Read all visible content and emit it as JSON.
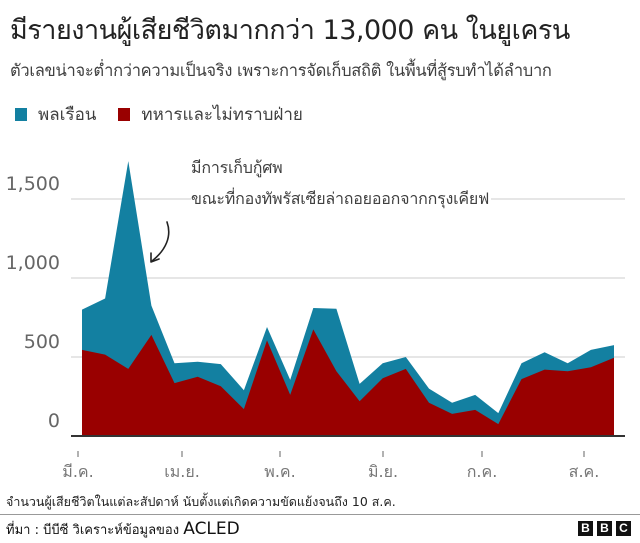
{
  "header": {
    "title": "มีรายงานผู้เสียชีวิตมากกว่า 13,000 คน ในยูเครน",
    "subtitle": "ตัวเลขน่าจะต่ำกว่าความเป็นจริง เพราะการจัดเก็บสถิติ ในพื้นที่สู้รบทำได้ลำบาก"
  },
  "legend": [
    {
      "label": "พลเรือน",
      "color": "#1380A1"
    },
    {
      "label": "ทหารและไม่ทราบฝ่าย",
      "color": "#990000"
    }
  ],
  "annotation": {
    "line1": "มีการเก็บกู้ศพ",
    "line2": "ขณะที่กองทัพรัสเซียล่าถอยออกจากกรุงเคียฟ"
  },
  "axis": {
    "y_ticks": [
      "1,500",
      "1,000",
      "500",
      "0"
    ],
    "x_ticks": [
      "มี.ค.",
      "เม.ย.",
      "พ.ค.",
      "มิ.ย.",
      "ก.ค.",
      "ส.ค."
    ]
  },
  "note": "จำนวนผู้เสียชีวิตในแต่ละสัปดาห์ นับตั้งแต่เกิดความขัดแย้งจนถึง 10 ส.ค.",
  "source": {
    "prefix": "ที่มา : บีบีซี วิเคราะห์ข้อมูลของ ",
    "org": "ACLED"
  },
  "brand": [
    "B",
    "B",
    "C"
  ],
  "chart_data": {
    "type": "area",
    "stacked": true,
    "title": "มีรายงานผู้เสียชีวิตมากกว่า 13,000 คน ในยูเครน",
    "subtitle": "ตัวเลขน่าจะต่ำกว่าความเป็นจริง เพราะการจัดเก็บสถิติ ในพื้นที่สู้รบทำได้ลำบาก",
    "xlabel": "",
    "ylabel": "",
    "ylim": [
      0,
      1750
    ],
    "yticks": [
      0,
      500,
      1000,
      1500
    ],
    "xtick_labels": [
      "มี.ค.",
      "เม.ย.",
      "พ.ค.",
      "มิ.ย.",
      "ก.ค.",
      "ส.ค."
    ],
    "grid": true,
    "legend_position": "top-left",
    "x": [
      "w1",
      "w2",
      "w3",
      "w4",
      "w5",
      "w6",
      "w7",
      "w8",
      "w9",
      "w10",
      "w11",
      "w12",
      "w13",
      "w14",
      "w15",
      "w16",
      "w17",
      "w18",
      "w19",
      "w20",
      "w21",
      "w22",
      "w23",
      "w24"
    ],
    "series": [
      {
        "name": "ทหารและไม่ทราบฝ่าย",
        "color": "#990000",
        "values": [
          545,
          515,
          425,
          640,
          335,
          375,
          315,
          170,
          605,
          260,
          675,
          410,
          220,
          365,
          425,
          210,
          140,
          165,
          75,
          360,
          420,
          410,
          435,
          495
        ]
      },
      {
        "name": "พลเรือน",
        "color": "#1380A1",
        "values": [
          255,
          355,
          1315,
          185,
          125,
          95,
          140,
          120,
          85,
          95,
          135,
          395,
          110,
          95,
          75,
          90,
          70,
          95,
          70,
          100,
          110,
          50,
          110,
          80
        ]
      }
    ],
    "totals": [
      800,
      870,
      1740,
      825,
      460,
      470,
      455,
      290,
      690,
      355,
      810,
      805,
      330,
      460,
      500,
      300,
      210,
      260,
      145,
      460,
      530,
      460,
      545,
      575
    ],
    "annotation": "มีการเก็บกู้ศพ ขณะที่กองทัพรัสเซียล่าถอยออกจากกรุงเคียฟ",
    "note": "จำนวนผู้เสียชีวิตในแต่ละสัปดาห์ นับตั้งแต่เกิดความขัดแย้งจนถึง 10 ส.ค."
  }
}
